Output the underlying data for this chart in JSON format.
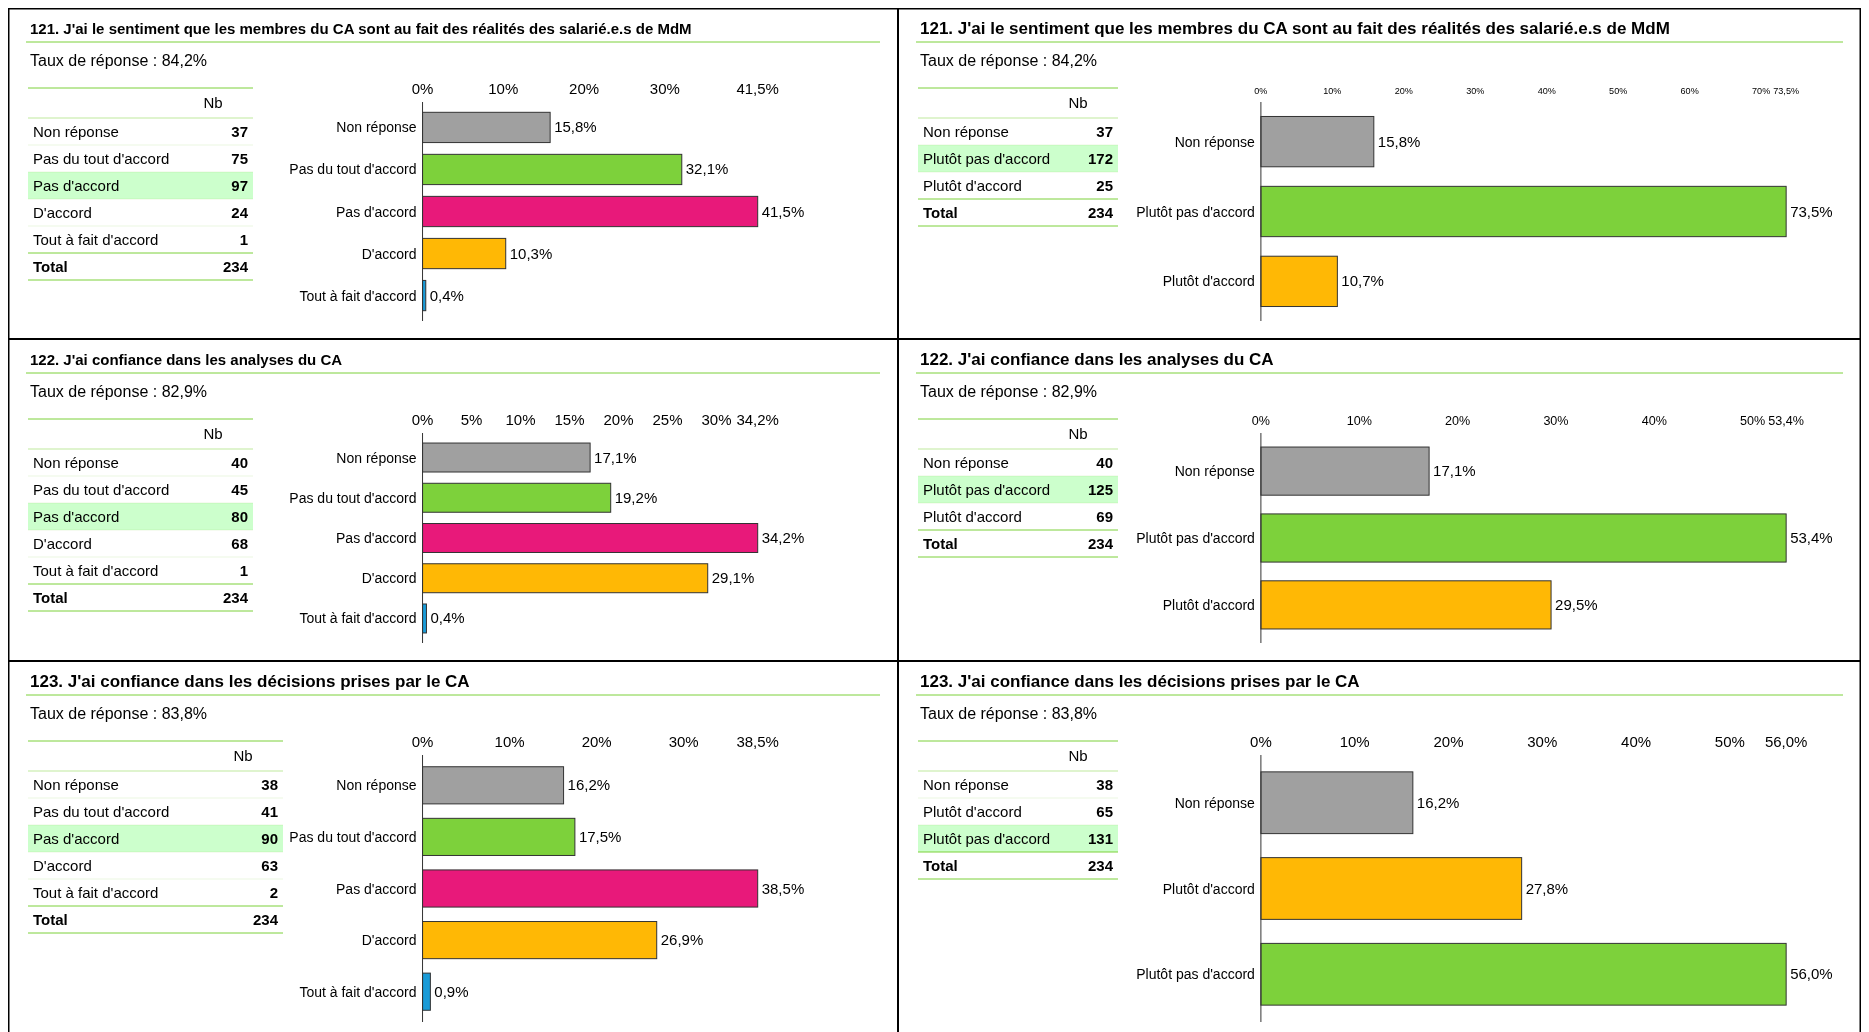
{
  "chart_data": [
    {
      "type": "other",
      "subtitle": "Taux de réponse : 84,2%",
      "data_labels": true,
      "categories": [
        "Non réponse",
        "Pas du tout d'accord",
        "Pas d'accord",
        "D'accord",
        "Tout à fait d'accord",
        "Total"
      ],
      "values": [
        37,
        75,
        97,
        24,
        1,
        234
      ],
      "colors": [
        "#ffffff",
        "#ffffff",
        "#ccffcc",
        "#ffffff",
        "#ffffff",
        "#ffffff"
      ],
      "annotations": [
        "Nb"
      ]
    },
    {
      "type": "bar",
      "title": "121. J'ai le sentiment que les membres du CA sont au fait des réalités des salarié.e.s de MdM",
      "orientation": "horizontal",
      "categories": [
        "Non réponse",
        "Pas du tout d'accord",
        "Pas d'accord",
        "D'accord",
        "Tout à fait d'accord"
      ],
      "values": [
        15.8,
        32.1,
        41.5,
        10.3,
        0.4
      ],
      "value_labels": [
        "15,8%",
        "32,1%",
        "41,5%",
        "10,3%",
        "0,4%"
      ],
      "colors": [
        "#a0a0a0",
        "#7dd13b",
        "#e8197a",
        "#ffb805",
        "#1a9bd7"
      ],
      "xlim": [
        0,
        41.5
      ],
      "xticks": [
        {
          "value": 0,
          "label": "0%"
        },
        {
          "value": 10,
          "label": "10%"
        },
        {
          "value": 20,
          "label": "20%"
        },
        {
          "value": 30,
          "label": "30%"
        },
        {
          "value": 41.5,
          "label": "41,5%"
        }
      ]
    },
    {
      "type": "other",
      "subtitle": "Taux de réponse : 84,2%",
      "data_labels": true,
      "categories": [
        "Non réponse",
        "Plutôt pas d'accord",
        "Plutôt d'accord",
        "Total"
      ],
      "values": [
        37,
        172,
        25,
        234
      ],
      "colors": [
        "#ffffff",
        "#ccffcc",
        "#ffffff",
        "#ffffff"
      ],
      "annotations": [
        "Nb"
      ]
    },
    {
      "type": "bar",
      "title": "121. J'ai le sentiment que les membres du CA sont au fait des réalités des salarié.e.s de MdM",
      "orientation": "horizontal",
      "categories": [
        "Non réponse",
        "Plutôt pas d'accord",
        "Plutôt d'accord"
      ],
      "values": [
        15.8,
        73.5,
        10.7
      ],
      "value_labels": [
        "15,8%",
        "73,5%",
        "10,7%"
      ],
      "colors": [
        "#a0a0a0",
        "#7dd13b",
        "#ffb805"
      ],
      "xlim": [
        0,
        73.5
      ],
      "xticks": [
        {
          "value": 0,
          "label": "0%"
        },
        {
          "value": 10,
          "label": "10%"
        },
        {
          "value": 20,
          "label": "20%"
        },
        {
          "value": 30,
          "label": "30%"
        },
        {
          "value": 40,
          "label": "40%"
        },
        {
          "value": 50,
          "label": "50%"
        },
        {
          "value": 60,
          "label": "60%"
        },
        {
          "value": 70,
          "label": "70%"
        },
        {
          "value": 73.5,
          "label": "73,5%"
        }
      ]
    },
    {
      "type": "other",
      "subtitle": "Taux de réponse : 82,9%",
      "data_labels": true,
      "categories": [
        "Non réponse",
        "Pas du tout d'accord",
        "Pas d'accord",
        "D'accord",
        "Tout à fait d'accord",
        "Total"
      ],
      "values": [
        40,
        45,
        80,
        68,
        1,
        234
      ],
      "colors": [
        "#ffffff",
        "#ffffff",
        "#ccffcc",
        "#ffffff",
        "#ffffff",
        "#ffffff"
      ],
      "annotations": [
        "Nb"
      ]
    },
    {
      "type": "bar",
      "title": "122. J'ai confiance dans  les analyses du CA",
      "orientation": "horizontal",
      "categories": [
        "Non réponse",
        "Pas du tout d'accord",
        "Pas d'accord",
        "D'accord",
        "Tout à fait d'accord"
      ],
      "values": [
        17.1,
        19.2,
        34.2,
        29.1,
        0.4
      ],
      "value_labels": [
        "17,1%",
        "19,2%",
        "34,2%",
        "29,1%",
        "0,4%"
      ],
      "colors": [
        "#a0a0a0",
        "#7dd13b",
        "#e8197a",
        "#ffb805",
        "#1a9bd7"
      ],
      "xlim": [
        0,
        34.2
      ],
      "xticks": [
        {
          "value": 0,
          "label": "0%"
        },
        {
          "value": 5,
          "label": "5%"
        },
        {
          "value": 10,
          "label": "10%"
        },
        {
          "value": 15,
          "label": "15%"
        },
        {
          "value": 20,
          "label": "20%"
        },
        {
          "value": 25,
          "label": "25%"
        },
        {
          "value": 30,
          "label": "30%"
        },
        {
          "value": 34.2,
          "label": "34,2%"
        }
      ]
    },
    {
      "type": "other",
      "subtitle": "Taux de réponse : 82,9%",
      "data_labels": true,
      "categories": [
        "Non réponse",
        "Plutôt pas d'accord",
        "Plutôt d'accord",
        "Total"
      ],
      "values": [
        40,
        125,
        69,
        234
      ],
      "colors": [
        "#ffffff",
        "#ccffcc",
        "#ffffff",
        "#ffffff"
      ],
      "annotations": [
        "Nb"
      ]
    },
    {
      "type": "bar",
      "title": "122. J'ai confiance dans  les analyses du CA",
      "orientation": "horizontal",
      "categories": [
        "Non réponse",
        "Plutôt pas d'accord",
        "Plutôt d'accord"
      ],
      "values": [
        17.1,
        53.4,
        29.5
      ],
      "value_labels": [
        "17,1%",
        "53,4%",
        "29,5%"
      ],
      "colors": [
        "#a0a0a0",
        "#7dd13b",
        "#ffb805"
      ],
      "xlim": [
        0,
        53.4
      ],
      "xticks": [
        {
          "value": 0,
          "label": "0%"
        },
        {
          "value": 10,
          "label": "10%"
        },
        {
          "value": 20,
          "label": "20%"
        },
        {
          "value": 30,
          "label": "30%"
        },
        {
          "value": 40,
          "label": "40%"
        },
        {
          "value": 50,
          "label": "50%"
        },
        {
          "value": 53.4,
          "label": "53,4%"
        }
      ]
    },
    {
      "type": "other",
      "subtitle": "Taux de réponse : 83,8%",
      "data_labels": true,
      "categories": [
        "Non réponse",
        "Pas du tout d'accord",
        "Pas d'accord",
        "D'accord",
        "Tout à fait d'accord",
        "Total"
      ],
      "values": [
        38,
        41,
        90,
        63,
        2,
        234
      ],
      "colors": [
        "#ffffff",
        "#ffffff",
        "#ccffcc",
        "#ffffff",
        "#ffffff",
        "#ffffff"
      ],
      "annotations": [
        "Nb"
      ]
    },
    {
      "type": "bar",
      "title": "123. J'ai confiance dans  les décisions prises par le CA",
      "orientation": "horizontal",
      "categories": [
        "Non réponse",
        "Pas du tout d'accord",
        "Pas d'accord",
        "D'accord",
        "Tout à fait d'accord"
      ],
      "values": [
        16.2,
        17.5,
        38.5,
        26.9,
        0.9
      ],
      "value_labels": [
        "16,2%",
        "17,5%",
        "38,5%",
        "26,9%",
        "0,9%"
      ],
      "colors": [
        "#a0a0a0",
        "#7dd13b",
        "#e8197a",
        "#ffb805",
        "#1a9bd7"
      ],
      "xlim": [
        0,
        38.5
      ],
      "xticks": [
        {
          "value": 0,
          "label": "0%"
        },
        {
          "value": 10,
          "label": "10%"
        },
        {
          "value": 20,
          "label": "20%"
        },
        {
          "value": 30,
          "label": "30%"
        },
        {
          "value": 38.5,
          "label": "38,5%"
        }
      ]
    },
    {
      "type": "other",
      "subtitle": "Taux de réponse : 83,8%",
      "data_labels": true,
      "categories": [
        "Non réponse",
        "Plutôt d'accord",
        "Plutôt pas d'accord",
        "Total"
      ],
      "values": [
        38,
        65,
        131,
        234
      ],
      "colors": [
        "#ffffff",
        "#ffffff",
        "#ccffcc",
        "#ffffff"
      ],
      "annotations": [
        "Nb"
      ]
    },
    {
      "type": "bar",
      "title": "123. J'ai confiance dans  les décisions prises par le CA",
      "orientation": "horizontal",
      "categories": [
        "Non réponse",
        "Plutôt d'accord",
        "Plutôt pas d'accord"
      ],
      "values": [
        16.2,
        27.8,
        56.0
      ],
      "value_labels": [
        "16,2%",
        "27,8%",
        "56,0%"
      ],
      "colors": [
        "#a0a0a0",
        "#ffb805",
        "#7dd13b"
      ],
      "xlim": [
        0,
        56.0
      ],
      "xticks": [
        {
          "value": 0,
          "label": "0%"
        },
        {
          "value": 10,
          "label": "10%"
        },
        {
          "value": 20,
          "label": "20%"
        },
        {
          "value": 30,
          "label": "30%"
        },
        {
          "value": 40,
          "label": "40%"
        },
        {
          "value": 50,
          "label": "50%"
        },
        {
          "value": 56.0,
          "label": "56,0%"
        }
      ]
    }
  ]
}
